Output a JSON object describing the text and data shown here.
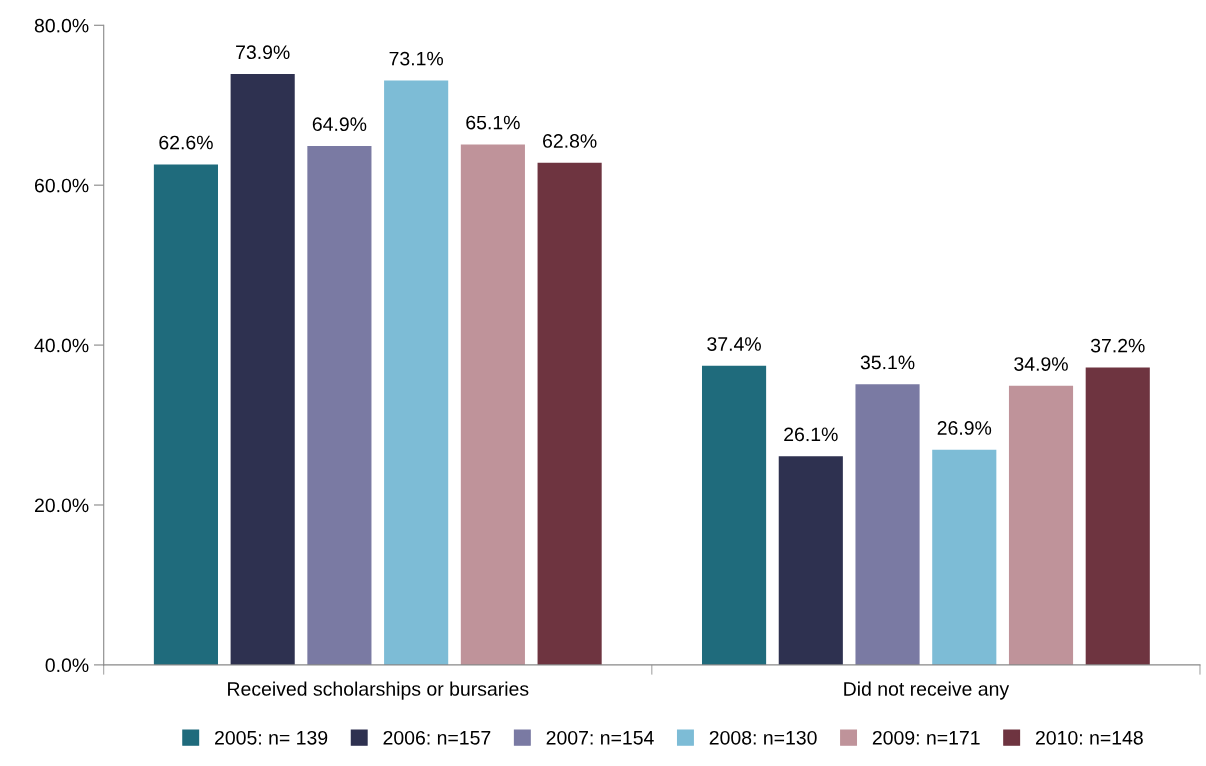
{
  "chart_data": {
    "type": "bar",
    "categories": [
      "Received scholarships or bursaries",
      "Did not receive any"
    ],
    "series": [
      {
        "name": "2005: n= 139",
        "color": "#1f6b7c",
        "values": [
          62.6,
          37.4
        ],
        "value_labels": [
          "62.6%",
          "37.4%"
        ]
      },
      {
        "name": "2006: n=157",
        "color": "#2e3150",
        "values": [
          73.9,
          26.1
        ],
        "value_labels": [
          "73.9%",
          "26.1%"
        ]
      },
      {
        "name": "2007: n=154",
        "color": "#7a7aa3",
        "values": [
          64.9,
          35.1
        ],
        "value_labels": [
          "64.9%",
          "35.1%"
        ]
      },
      {
        "name": "2008: n=130",
        "color": "#7dbcd6",
        "values": [
          73.1,
          26.9
        ],
        "value_labels": [
          "73.1%",
          "26.9%"
        ]
      },
      {
        "name": "2009: n=171",
        "color": "#bf939a",
        "values": [
          65.1,
          34.9
        ],
        "value_labels": [
          "65.1%",
          "34.9%"
        ]
      },
      {
        "name": "2010: n=148",
        "color": "#6e3440",
        "values": [
          62.8,
          37.2
        ],
        "value_labels": [
          "62.8%",
          "37.2%"
        ]
      }
    ],
    "ylim": [
      0,
      80
    ],
    "yticks": [
      {
        "value": 0,
        "label": "0.0%"
      },
      {
        "value": 20,
        "label": "20.0%"
      },
      {
        "value": 40,
        "label": "40.0%"
      },
      {
        "value": 60,
        "label": "60.0%"
      },
      {
        "value": 80,
        "label": "80.0%"
      }
    ],
    "grid": false,
    "legend": "bottom"
  }
}
